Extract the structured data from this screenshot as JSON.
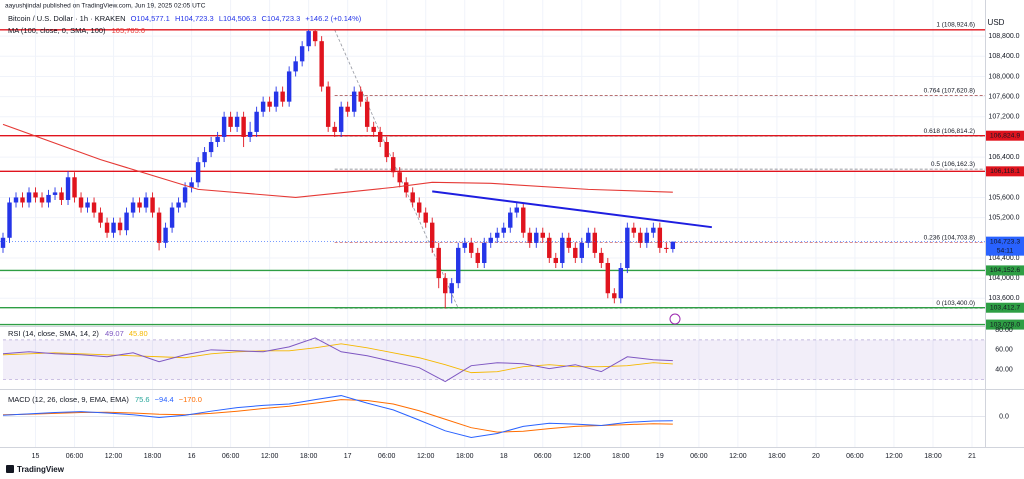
{
  "header": {
    "published": "aayushjindal published on TradingView.com, Jun 19, 2025 02:05 UTC",
    "symbol": "Bitcoin / U.S. Dollar · 1h · KRAKEN",
    "open": "O104,577.1",
    "high": "H104,723.3",
    "low": "L104,506.3",
    "close": "C104,723.3",
    "change": "+146.2 (+0.14%)",
    "currency": "USD"
  },
  "footer": {
    "brand": "TradingView"
  },
  "chart_data": {
    "type": "candlestick",
    "up_color": "#2535e8",
    "down_color": "#e0141e",
    "open": [
      104600,
      104800,
      105500,
      105600,
      105500,
      105700,
      105600,
      105500,
      105650,
      105700,
      105550,
      106000,
      105600,
      105400,
      105500,
      105300,
      105100,
      104900,
      105100,
      104950,
      105300,
      105500,
      105400,
      105600,
      105300,
      104700,
      105000,
      105400,
      105500,
      105800,
      105900,
      106300,
      106500,
      106700,
      106800,
      107200,
      107000,
      107200,
      106800,
      106900,
      107300,
      107500,
      107400,
      107700,
      107500,
      108100,
      108300,
      108600,
      108900,
      108700,
      107800,
      107000,
      106900,
      107400,
      107300,
      107700,
      107500,
      107000,
      106900,
      106700,
      106400,
      106100,
      105900,
      105700,
      105500,
      105300,
      105100,
      104600,
      104000,
      103700,
      103900,
      104600,
      104700,
      104500,
      104300,
      104700,
      104800,
      104900,
      105000,
      105300,
      105400,
      104900,
      104700,
      104900,
      104800,
      104400,
      104300,
      104800,
      104600,
      104400,
      104700,
      104900,
      104500,
      104300,
      103700,
      103600,
      104200,
      105000,
      104900,
      104700,
      104900,
      105000,
      104600,
      104577.1
    ],
    "high": [
      104900,
      105600,
      105700,
      105700,
      105800,
      105800,
      105700,
      105750,
      105800,
      105800,
      106120,
      106100,
      105700,
      105600,
      105600,
      105400,
      105200,
      105200,
      105200,
      105400,
      105600,
      105600,
      105700,
      105700,
      105400,
      105100,
      105500,
      105600,
      105900,
      106000,
      106400,
      106600,
      106800,
      106900,
      107300,
      107300,
      107300,
      107300,
      107100,
      107400,
      107600,
      107600,
      107800,
      107800,
      108200,
      108400,
      108700,
      108924.6,
      108920,
      108800,
      107900,
      107100,
      107500,
      107500,
      107800,
      107800,
      107600,
      107100,
      107000,
      106800,
      106500,
      106200,
      106000,
      105800,
      105600,
      105400,
      105200,
      104700,
      104100,
      104000,
      104700,
      104800,
      104800,
      104600,
      104800,
      104900,
      105000,
      105100,
      105400,
      105500,
      105500,
      105000,
      105000,
      105000,
      104900,
      104500,
      104900,
      104900,
      104700,
      104800,
      105000,
      105000,
      104600,
      104400,
      103800,
      104300,
      105100,
      105100,
      105000,
      105000,
      105100,
      105100,
      104700,
      104723.3
    ],
    "low": [
      104500,
      104700,
      105400,
      105400,
      105400,
      105500,
      105400,
      105400,
      105550,
      105450,
      105450,
      105500,
      105300,
      105300,
      105200,
      105000,
      104800,
      104800,
      104850,
      104850,
      105200,
      105300,
      105300,
      105200,
      104550,
      104600,
      104900,
      105300,
      105400,
      105700,
      105800,
      106200,
      106400,
      106600,
      106700,
      106900,
      106900,
      106600,
      106700,
      106800,
      107200,
      107300,
      107300,
      107400,
      107400,
      108000,
      108200,
      108500,
      108600,
      107700,
      106900,
      106800,
      106800,
      107200,
      107200,
      107400,
      106900,
      106800,
      106600,
      106300,
      106000,
      105800,
      105600,
      105400,
      105200,
      105000,
      104500,
      103800,
      103400,
      103500,
      103800,
      104500,
      104400,
      104200,
      104200,
      104600,
      104700,
      104800,
      104900,
      105200,
      104800,
      104600,
      104600,
      104700,
      104300,
      104200,
      104200,
      104500,
      104300,
      104300,
      104600,
      104400,
      104200,
      103600,
      103500,
      103500,
      104100,
      104800,
      104600,
      104600,
      104800,
      104500,
      104500,
      104506.3
    ],
    "close": [
      104800,
      105500,
      105600,
      105500,
      105700,
      105600,
      105500,
      105650,
      105700,
      105550,
      106000,
      105600,
      105400,
      105500,
      105300,
      105100,
      104900,
      105100,
      104950,
      105300,
      105500,
      105400,
      105600,
      105300,
      104700,
      105000,
      105400,
      105500,
      105800,
      105900,
      106300,
      106500,
      106700,
      106800,
      107200,
      107000,
      107200,
      106800,
      106900,
      107300,
      107500,
      107400,
      107700,
      107500,
      108100,
      108300,
      108600,
      108900,
      108700,
      107800,
      107000,
      106900,
      107400,
      107300,
      107700,
      107500,
      107000,
      106900,
      106700,
      106400,
      106100,
      105900,
      105700,
      105500,
      105300,
      105100,
      104600,
      104000,
      103700,
      103900,
      104600,
      104700,
      104500,
      104300,
      104700,
      104800,
      104900,
      105000,
      105300,
      105400,
      104900,
      104700,
      104900,
      104800,
      104400,
      104300,
      104800,
      104600,
      104400,
      104700,
      104900,
      104500,
      104300,
      103700,
      103600,
      104200,
      105000,
      104900,
      104700,
      104900,
      105000,
      104600,
      104577.1,
      104723.3
    ],
    "xlim": [
      0,
      151
    ],
    "xticks": [
      {
        "value": 5,
        "label": "15"
      },
      {
        "value": 11,
        "label": "06:00"
      },
      {
        "value": 17,
        "label": "12:00"
      },
      {
        "value": 23,
        "label": "18:00"
      },
      {
        "value": 29,
        "label": "16"
      },
      {
        "value": 35,
        "label": "06:00"
      },
      {
        "value": 41,
        "label": "12:00"
      },
      {
        "value": 47,
        "label": "18:00"
      },
      {
        "value": 53,
        "label": "17"
      },
      {
        "value": 59,
        "label": "06:00"
      },
      {
        "value": 65,
        "label": "12:00"
      },
      {
        "value": 71,
        "label": "18:00"
      },
      {
        "value": 77,
        "label": "18"
      },
      {
        "value": 83,
        "label": "06:00"
      },
      {
        "value": 89,
        "label": "12:00"
      },
      {
        "value": 95,
        "label": "18:00"
      },
      {
        "value": 101,
        "label": "19"
      },
      {
        "value": 107,
        "label": "06:00"
      },
      {
        "value": 113,
        "label": "12:00"
      },
      {
        "value": 119,
        "label": "18:00"
      },
      {
        "value": 125,
        "label": "20"
      },
      {
        "value": 131,
        "label": "06:00"
      },
      {
        "value": 137,
        "label": "12:00"
      },
      {
        "value": 143,
        "label": "18:00"
      },
      {
        "value": 149,
        "label": "21"
      }
    ],
    "ylim": [
      103050,
      109120
    ],
    "yticks": [
      {
        "value": 108800,
        "label": "108,800.0"
      },
      {
        "value": 108400,
        "label": "108,400.0"
      },
      {
        "value": 108000,
        "label": "108,000.0"
      },
      {
        "value": 107600,
        "label": "107,600.0"
      },
      {
        "value": 107200,
        "label": "107,200.0"
      },
      {
        "value": 106400,
        "label": "106,400.0"
      },
      {
        "value": 105600,
        "label": "105,600.0"
      },
      {
        "value": 105200,
        "label": "105,200.0"
      },
      {
        "value": 104400,
        "label": "104,400.0"
      },
      {
        "value": 104000,
        "label": "104,000.0"
      },
      {
        "value": 103600,
        "label": "103,600.0"
      }
    ],
    "grid": true,
    "ma": {
      "name": "MA (100, close, 0, SMA, 100)",
      "last_label": "105,705.0",
      "color": "#e53935",
      "x": [
        0,
        15,
        30,
        45,
        60,
        66,
        75,
        90,
        103
      ],
      "values": [
        107050,
        106350,
        105760,
        105600,
        105800,
        105900,
        105880,
        105760,
        105705
      ]
    },
    "levels": [
      {
        "value": 108924.6,
        "color": "#e0141e"
      },
      {
        "value": 106824.9,
        "label": "106,824.9",
        "color": "#e0141e"
      },
      {
        "value": 106118.1,
        "label": "106,118.1",
        "color": "#e0141e"
      },
      {
        "value": 104152.6,
        "label": "104,152.6",
        "color": "#2e9e44"
      },
      {
        "value": 103412.7,
        "label": "103,412.7",
        "color": "#2e9e44"
      },
      {
        "value": 103078.0,
        "label": "103,078.0",
        "color": "#2e9e44"
      }
    ],
    "last_price": {
      "value": 104723.3,
      "label": "104,723.3",
      "countdown": "54:11",
      "color": "#2962ff"
    },
    "fib": {
      "anchor_x": [
        51,
        70
      ],
      "levels": [
        {
          "value": 108924.6,
          "label": "1 (108,924.6)",
          "color": "#5b9bd5"
        },
        {
          "value": 107620.8,
          "label": "0.764 (107,620.8)",
          "color": "#8b1a1a"
        },
        {
          "value": 106814.2,
          "label": "0.618 (106,814.2)",
          "color": "#089981"
        },
        {
          "value": 106162.3,
          "label": "0.5 (106,162.3)",
          "color": "#434651"
        },
        {
          "value": 104703.8,
          "label": "0.236 (104,703.8)",
          "color": "#b22833"
        },
        {
          "value": 103400.0,
          "label": "0 (103,400.0)",
          "color": "#787b86"
        }
      ]
    },
    "trendline": {
      "color": "#1e1ee0",
      "x": [
        66,
        109
      ],
      "values": [
        105720,
        105010
      ]
    },
    "rsi": {
      "title": "RSI (14, close, SMA, 14, 2)",
      "value_label": "49.07",
      "sma_label": "45.80",
      "color": "#7e57c2",
      "sma_color": "#f5b800",
      "ylim": [
        20.5,
        83
      ],
      "band": [
        30,
        70
      ],
      "yticks": [
        {
          "value": 80,
          "label": "80.00"
        },
        {
          "value": 60,
          "label": "60.00"
        },
        {
          "value": 40,
          "label": "40.00"
        }
      ],
      "x": [
        0,
        4,
        8,
        12,
        16,
        20,
        24,
        28,
        32,
        36,
        40,
        44,
        48,
        52,
        56,
        60,
        64,
        68,
        72,
        76,
        80,
        84,
        88,
        92,
        96,
        100,
        103
      ],
      "values": [
        56,
        58,
        56,
        55,
        53,
        57,
        48,
        55,
        60,
        59,
        58,
        63,
        72,
        58,
        54,
        48,
        42,
        28,
        44,
        47,
        46,
        41,
        45,
        38,
        53,
        50,
        49.07
      ],
      "sma": [
        55,
        56,
        57,
        56,
        55,
        54,
        53,
        52,
        56,
        58,
        59,
        59,
        62,
        66,
        62,
        57,
        52,
        45,
        37,
        38,
        43,
        45,
        43,
        43,
        44,
        47,
        45.8
      ]
    },
    "macd": {
      "title": "MACD (12, 26, close, 9, EMA, EMA)",
      "labels": [
        "75.6",
        "−94.4",
        "−170.0"
      ],
      "label_colors": [
        "#26a69a",
        "#2962ff",
        "#ff6d00"
      ],
      "color": "#2962ff",
      "signal_color": "#ff6d00",
      "ylim": [
        -660,
        550
      ],
      "yticks": [
        {
          "value": 0,
          "label": "0.0"
        }
      ],
      "x": [
        0,
        4,
        8,
        12,
        16,
        20,
        24,
        28,
        32,
        36,
        40,
        44,
        48,
        52,
        56,
        60,
        64,
        68,
        72,
        76,
        80,
        84,
        88,
        92,
        96,
        100,
        103
      ],
      "values": [
        30,
        60,
        90,
        110,
        80,
        40,
        -20,
        30,
        120,
        200,
        250,
        280,
        380,
        470,
        300,
        150,
        -80,
        -320,
        -470,
        -380,
        -220,
        -150,
        -170,
        -200,
        -130,
        -100,
        -94.4
      ],
      "signal": [
        40,
        50,
        70,
        90,
        95,
        80,
        50,
        40,
        70,
        120,
        180,
        230,
        300,
        380,
        360,
        280,
        130,
        -60,
        -250,
        -350,
        -330,
        -270,
        -220,
        -200,
        -180,
        -160,
        -170.0
      ]
    }
  }
}
